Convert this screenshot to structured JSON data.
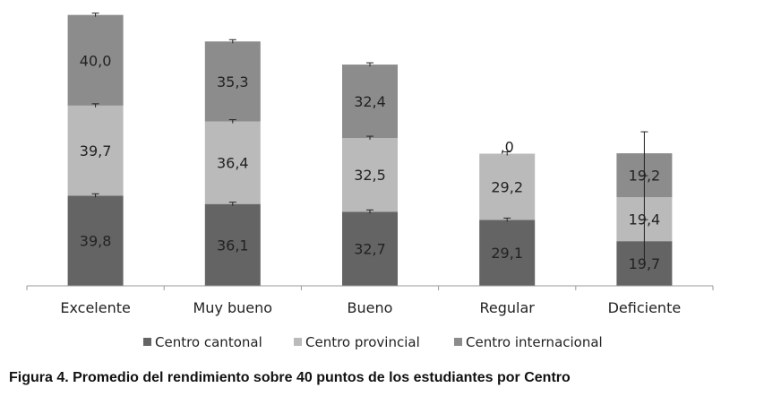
{
  "caption": "Figura 4. Promedio del rendimiento sobre 40 puntos de los estudiantes por Centro",
  "chart_data": {
    "type": "bar",
    "stacked": true,
    "categories": [
      "Excelente",
      "Muy bueno",
      "Bueno",
      "Regular",
      "Deficiente"
    ],
    "series": [
      {
        "name": "Centro cantonal",
        "color": "#646464",
        "values": [
          39.8,
          36.1,
          32.7,
          29.1,
          19.7
        ],
        "labels": [
          "39,8",
          "36,1",
          "32,7",
          "29,1",
          "19,7"
        ]
      },
      {
        "name": "Centro provincial",
        "color": "#bababa",
        "values": [
          39.7,
          36.4,
          32.5,
          29.2,
          19.4
        ],
        "labels": [
          "39,7",
          "36,4",
          "32,5",
          "29,2",
          "19,4"
        ]
      },
      {
        "name": "Centro internacional",
        "color": "#8c8c8c",
        "values": [
          40.0,
          35.3,
          32.4,
          0,
          19.2
        ],
        "labels": [
          "40,0",
          "35,3",
          "32,4",
          ",0",
          "19,2"
        ]
      }
    ],
    "legend": "bottom",
    "grid": false,
    "ylabel": "",
    "xlabel": ""
  }
}
